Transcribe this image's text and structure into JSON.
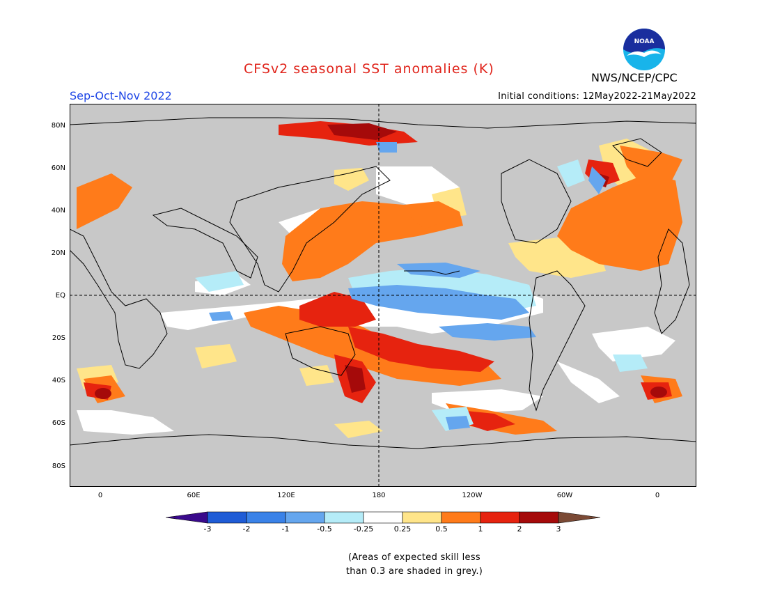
{
  "title": "CFSv2 seasonal SST anomalies (K)",
  "season": "Sep-Oct-Nov 2022",
  "initial_conditions": "Initial conditions: 12May2022-21May2022",
  "agency": "NWS/NCEP/CPC",
  "logo": {
    "text": "NOAA",
    "colors": {
      "outer": "#18b4ea",
      "inner": "#1a2e9e",
      "gull": "#ffffff"
    }
  },
  "map": {
    "lat_labels": [
      "80N",
      "60N",
      "40N",
      "20N",
      "EQ",
      "20S",
      "40S",
      "60S",
      "80S"
    ],
    "lon_labels": [
      "0",
      "60E",
      "120E",
      "180",
      "120W",
      "60W",
      "0"
    ],
    "land_color": "#c8c8c8",
    "grid_style": "dashed",
    "reference_lines": [
      "EQ",
      "180"
    ]
  },
  "colorbar": {
    "labels": [
      "-3",
      "-2",
      "-1",
      "-0.5",
      "-0.25",
      "0.25",
      "0.5",
      "1",
      "2",
      "3"
    ],
    "colors": [
      "#3a0a8c",
      "#1f5cd6",
      "#3a82e8",
      "#65a6ee",
      "#b5ecf8",
      "#ffffff",
      "#ffe58a",
      "#ff7b1a",
      "#e6230f",
      "#a50a0a",
      "#7b4a35"
    ]
  },
  "note": [
    "(Areas of expected skill less",
    "than 0.3 are shaded in grey.)"
  ]
}
